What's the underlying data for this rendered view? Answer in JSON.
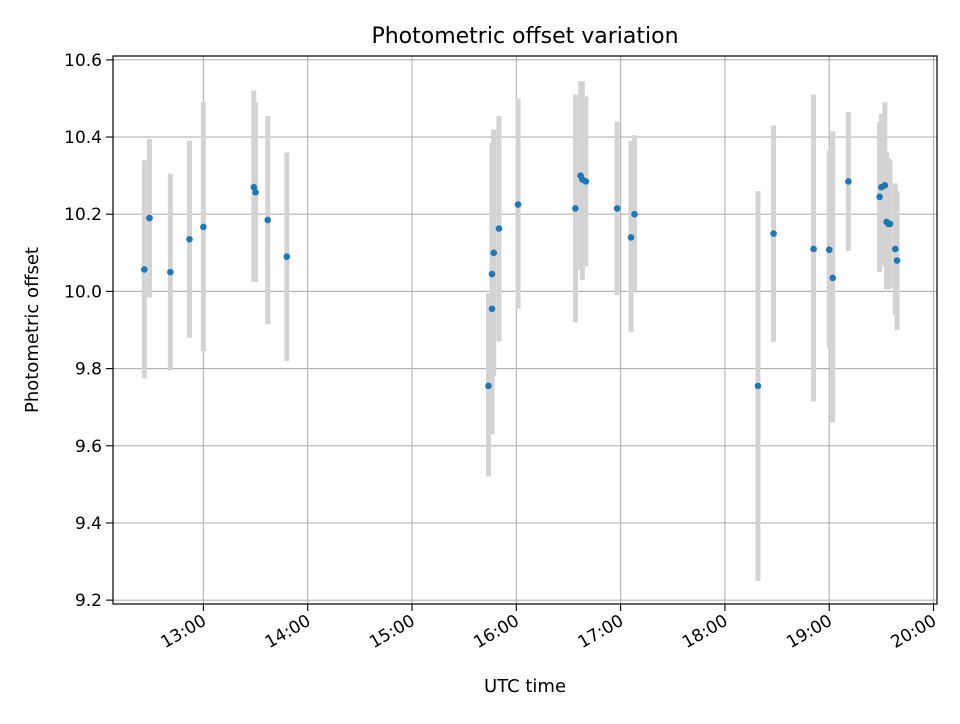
{
  "chart_data": {
    "type": "scatter",
    "title": "Photometric offset variation",
    "xlabel": "UTC time",
    "ylabel": "Photometric offset",
    "x_ticks": [
      "13:00",
      "14:00",
      "15:00",
      "16:00",
      "17:00",
      "18:00",
      "19:00",
      "20:00"
    ],
    "y_ticks": [
      "9.2",
      "9.4",
      "9.6",
      "9.8",
      "10.0",
      "10.2",
      "10.4",
      "10.6"
    ],
    "xlim": [
      "12:08",
      "20:02"
    ],
    "ylim": [
      9.19,
      10.61
    ],
    "grid": true,
    "colors": {
      "point": "#1f77b4",
      "errorbar": "#d3d3d3",
      "grid": "#b0b0b0"
    },
    "series": [
      {
        "points": [
          {
            "x": "12:26",
            "y": 10.057,
            "lo": 9.775,
            "hi": 10.34
          },
          {
            "x": "12:29",
            "y": 10.19,
            "lo": 9.985,
            "hi": 10.395
          },
          {
            "x": "12:41",
            "y": 10.05,
            "lo": 9.795,
            "hi": 10.305
          },
          {
            "x": "12:52",
            "y": 10.135,
            "lo": 9.88,
            "hi": 10.39
          },
          {
            "x": "13:00",
            "y": 10.167,
            "lo": 9.845,
            "hi": 10.49
          },
          {
            "x": "13:29",
            "y": 10.27,
            "lo": 10.025,
            "hi": 10.52
          },
          {
            "x": "13:30",
            "y": 10.257,
            "lo": 10.025,
            "hi": 10.49
          },
          {
            "x": "13:37",
            "y": 10.185,
            "lo": 9.915,
            "hi": 10.455
          },
          {
            "x": "13:48",
            "y": 10.09,
            "lo": 9.82,
            "hi": 10.36
          },
          {
            "x": "15:44",
            "y": 9.755,
            "lo": 9.52,
            "hi": 9.995
          },
          {
            "x": "15:46",
            "y": 10.045,
            "lo": 9.705,
            "hi": 10.385
          },
          {
            "x": "15:46",
            "y": 9.955,
            "lo": 9.63,
            "hi": 10.28
          },
          {
            "x": "15:47",
            "y": 10.1,
            "lo": 9.78,
            "hi": 10.42
          },
          {
            "x": "15:50",
            "y": 10.163,
            "lo": 9.87,
            "hi": 10.455
          },
          {
            "x": "16:01",
            "y": 10.225,
            "lo": 9.955,
            "hi": 10.5
          },
          {
            "x": "16:34",
            "y": 10.215,
            "lo": 9.92,
            "hi": 10.51
          },
          {
            "x": "16:37",
            "y": 10.3,
            "lo": 10.055,
            "hi": 10.545
          },
          {
            "x": "16:38",
            "y": 10.29,
            "lo": 10.03,
            "hi": 10.545
          },
          {
            "x": "16:40",
            "y": 10.285,
            "lo": 10.065,
            "hi": 10.505
          },
          {
            "x": "16:58",
            "y": 10.215,
            "lo": 9.99,
            "hi": 10.44
          },
          {
            "x": "17:06",
            "y": 10.14,
            "lo": 9.895,
            "hi": 10.39
          },
          {
            "x": "17:08",
            "y": 10.2,
            "lo": 10.0,
            "hi": 10.405
          },
          {
            "x": "18:19",
            "y": 9.755,
            "lo": 9.25,
            "hi": 10.26
          },
          {
            "x": "18:28",
            "y": 10.15,
            "lo": 9.87,
            "hi": 10.43
          },
          {
            "x": "18:51",
            "y": 10.11,
            "lo": 9.715,
            "hi": 10.51
          },
          {
            "x": "19:00",
            "y": 10.108,
            "lo": 9.855,
            "hi": 10.365
          },
          {
            "x": "19:02",
            "y": 10.035,
            "lo": 9.66,
            "hi": 10.415
          },
          {
            "x": "19:11",
            "y": 10.285,
            "lo": 10.105,
            "hi": 10.465
          },
          {
            "x": "19:29",
            "y": 10.245,
            "lo": 10.05,
            "hi": 10.44
          },
          {
            "x": "19:30",
            "y": 10.27,
            "lo": 10.075,
            "hi": 10.46
          },
          {
            "x": "19:32",
            "y": 10.275,
            "lo": 10.065,
            "hi": 10.49
          },
          {
            "x": "19:33",
            "y": 10.18,
            "lo": 10.005,
            "hi": 10.36
          },
          {
            "x": "19:34",
            "y": 10.175,
            "lo": 10.005,
            "hi": 10.345
          },
          {
            "x": "19:35",
            "y": 10.175,
            "lo": 10.01,
            "hi": 10.34
          },
          {
            "x": "19:38",
            "y": 10.11,
            "lo": 9.94,
            "hi": 10.28
          },
          {
            "x": "19:39",
            "y": 10.08,
            "lo": 9.9,
            "hi": 10.26
          }
        ]
      }
    ]
  }
}
